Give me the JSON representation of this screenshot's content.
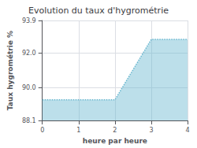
{
  "chart_data": {
    "type": "area",
    "title": "Evolution du taux d'hygrométrie",
    "xlabel": "heure par heure",
    "ylabel": "Taux hygrométrie %",
    "x": [
      0,
      2,
      3,
      4
    ],
    "values": [
      89.3,
      89.3,
      92.8,
      92.8
    ],
    "color": "#6ab8d0",
    "line_style": "dotted",
    "xlim": [
      0,
      4
    ],
    "xticks": [
      0,
      1,
      2,
      3,
      4
    ],
    "ylim": [
      88.1,
      93.9
    ],
    "yticks": [
      88.1,
      {
        "value": 90.0,
        "label": "90.0"
      },
      {
        "value": 92.0,
        "label": "92.0"
      },
      93.9
    ],
    "grid": true
  }
}
